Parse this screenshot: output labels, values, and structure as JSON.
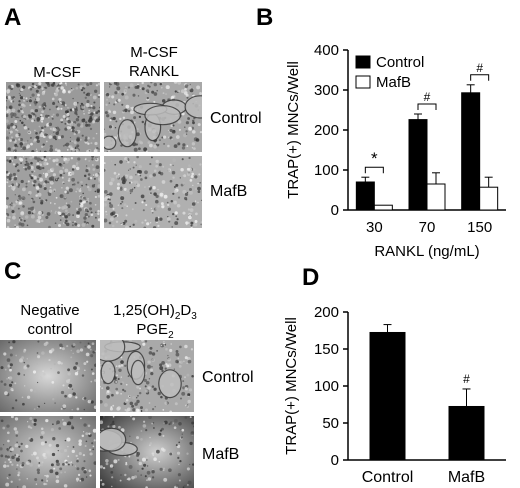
{
  "panels": {
    "A": {
      "letter": "A",
      "col_labels": [
        "M-CSF",
        "M-CSF",
        "RANKL"
      ],
      "row_labels": [
        "Control",
        "MafB"
      ]
    },
    "B": {
      "letter": "B"
    },
    "C": {
      "letter": "C",
      "col1_line1": "Negative",
      "col1_line2": "control",
      "col2_line1": "1,25(OH)",
      "col2_sub1": "2",
      "col2_mid": "D",
      "col2_sub2": "3",
      "col2_line2": "PGE",
      "col2_sub3": "2",
      "row_labels": [
        "Control",
        "MafB"
      ]
    },
    "D": {
      "letter": "D"
    }
  },
  "chart_data": [
    {
      "panel": "B",
      "type": "bar",
      "categories": [
        "30",
        "70",
        "150"
      ],
      "series": [
        {
          "name": "Control",
          "values": [
            70,
            226,
            293
          ],
          "errors": [
            12,
            14,
            20
          ],
          "color": "#000000"
        },
        {
          "name": "MafB",
          "values": [
            12,
            65,
            57
          ],
          "errors": [
            0,
            28,
            25
          ],
          "color": "#ffffff"
        }
      ],
      "xlabel": "RANKL (ng/mL)",
      "ylabel": "TRAP(+) MNCs/Well",
      "ylim": [
        0,
        400
      ],
      "yticks": [
        0,
        100,
        200,
        300,
        400
      ],
      "legend": "top-left",
      "grid": false,
      "significance": [
        "*",
        "#",
        "#"
      ]
    },
    {
      "panel": "D",
      "type": "bar",
      "categories": [
        "Control",
        "MafB"
      ],
      "values": [
        173,
        73
      ],
      "errors": [
        10,
        23
      ],
      "color": "#000000",
      "ylabel": "TRAP(+) MNCs/Well",
      "ylim": [
        0,
        200
      ],
      "yticks": [
        0,
        50,
        100,
        150,
        200
      ],
      "grid": false,
      "significance": [
        "",
        "#"
      ]
    }
  ]
}
